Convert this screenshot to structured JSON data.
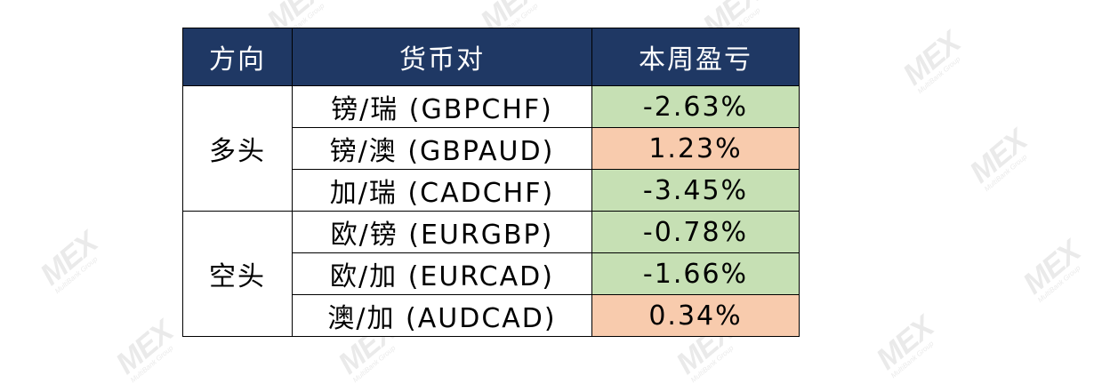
{
  "watermark": {
    "text": "MEX",
    "sub": "MultiBank Group"
  },
  "table": {
    "headers": {
      "direction": "方向",
      "pair": "货币对",
      "pnl": "本周盈亏"
    },
    "groups": [
      {
        "direction": "多头",
        "rows": [
          {
            "pair": "镑/瑞 (GBPCHF)",
            "pnl": "-2.63%",
            "status": "loss"
          },
          {
            "pair": "镑/澳 (GBPAUD)",
            "pnl": "1.23%",
            "status": "gain"
          },
          {
            "pair": "加/瑞 (CADCHF)",
            "pnl": "-3.45%",
            "status": "loss"
          }
        ]
      },
      {
        "direction": "空头",
        "rows": [
          {
            "pair": "欧/镑 (EURGBP)",
            "pnl": "-0.78%",
            "status": "loss"
          },
          {
            "pair": "欧/加 (EURCAD)",
            "pnl": "-1.66%",
            "status": "loss"
          },
          {
            "pair": "澳/加 (AUDCAD)",
            "pnl": "0.34%",
            "status": "gain"
          }
        ]
      }
    ]
  },
  "colors": {
    "header_bg": "#1f3864",
    "loss_bg": "#c6e0b4",
    "gain_bg": "#f8cbad"
  }
}
